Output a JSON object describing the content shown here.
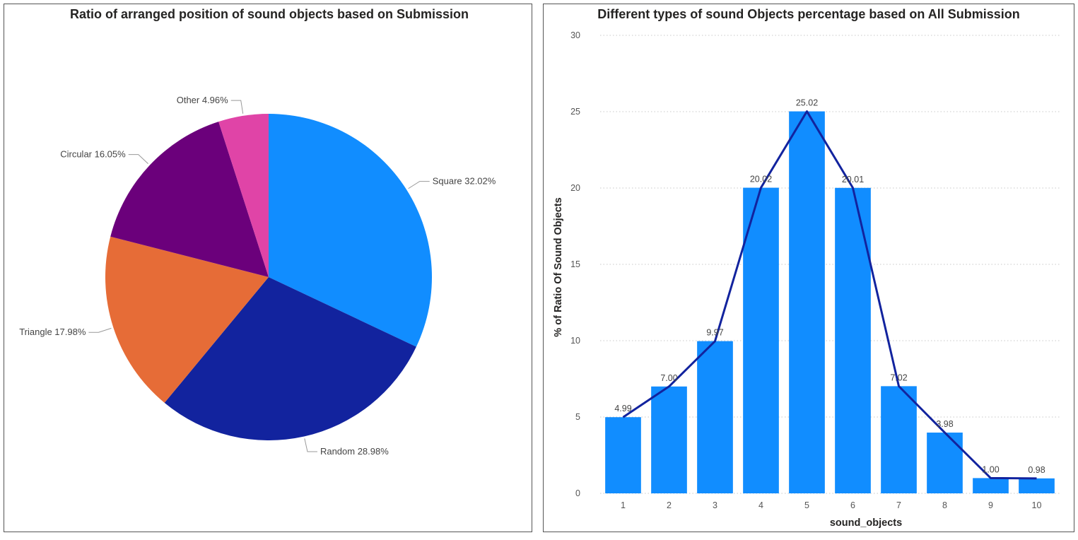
{
  "chart_data": [
    {
      "type": "pie",
      "title": "Ratio of arranged position of sound objects based on Submission",
      "slices": [
        {
          "label": "Square 32.02%",
          "name": "Square",
          "value": 32.02,
          "color": "#118DFF"
        },
        {
          "label": "Random 28.98%",
          "name": "Random",
          "value": 28.98,
          "color": "#12239E"
        },
        {
          "label": "Triangle 17.98%",
          "name": "Triangle",
          "value": 17.98,
          "color": "#E66C37"
        },
        {
          "label": "Circular 16.05%",
          "name": "Circular",
          "value": 16.05,
          "color": "#6B007B"
        },
        {
          "label": "Other 4.96%",
          "name": "Other",
          "value": 4.96,
          "color": "#E044A7"
        }
      ]
    },
    {
      "type": "bar",
      "title": "Different types of sound Objects percentage based on All Submission",
      "xlabel": "sound_objects",
      "ylabel": "% of Ratio Of Sound Objects",
      "categories": [
        "1",
        "2",
        "3",
        "4",
        "5",
        "6",
        "7",
        "8",
        "9",
        "10"
      ],
      "values": [
        4.99,
        7.0,
        9.97,
        20.02,
        25.02,
        20.01,
        7.02,
        3.98,
        1.0,
        0.98
      ],
      "data_labels": [
        "4.99",
        "7.00",
        "9.97",
        "20.02",
        "25.02",
        "20.01",
        "7.02",
        "3.98",
        "1.00",
        "0.98"
      ],
      "ylim": [
        0,
        30
      ],
      "yticks": [
        "0",
        "5",
        "10",
        "15",
        "20",
        "25",
        "30"
      ],
      "grid": true,
      "bar_color": "#118DFF",
      "line_color": "#12239E",
      "line_overlay": true
    }
  ]
}
